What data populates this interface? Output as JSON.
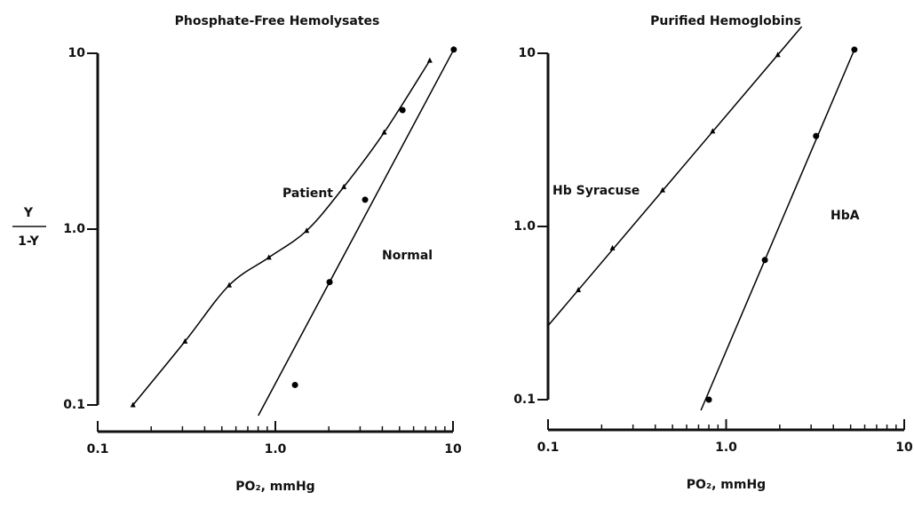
{
  "chart_data": [
    {
      "type": "line",
      "title": "Phosphate-Free Hemolysates",
      "x_label": "PO₂, mmHg",
      "y_label_numerator": "Y",
      "y_label_denominator": "1-Y",
      "log_x": true,
      "log_y": true,
      "xlim": [
        0.1,
        10
      ],
      "ylim": [
        0.1,
        10
      ],
      "xticks": [
        0.1,
        {
          "value": 1,
          "label": "1.0"
        },
        10
      ],
      "xminor": [
        0.2,
        0.3,
        0.4,
        0.5,
        0.6,
        0.7,
        0.8,
        0.9,
        2,
        3,
        4,
        5,
        6,
        7,
        8,
        9
      ],
      "yticks": [
        0.1,
        {
          "value": 1,
          "label": "1.0"
        },
        10
      ],
      "series": [
        {
          "name": "Patient",
          "color": "#000000",
          "marker": "triangle",
          "style": "curve",
          "x": [
            0.158,
            0.31,
            0.55,
            0.92,
            1.5,
            2.43,
            4.1,
            7.4
          ],
          "values": [
            0.1,
            0.23,
            0.48,
            0.69,
            0.98,
            1.74,
            3.55,
            9.1
          ]
        },
        {
          "name": "Normal",
          "color": "#000000",
          "marker": "circle",
          "style": "line",
          "x": [
            1.29,
            2.02,
            3.2,
            5.2,
            10.1
          ],
          "values": [
            0.13,
            0.5,
            1.47,
            4.75,
            10.5
          ]
        }
      ]
    },
    {
      "type": "line",
      "title": "Purified Hemoglobins",
      "x_label": "PO₂, mmHg",
      "log_x": true,
      "log_y": true,
      "xlim": [
        0.1,
        10
      ],
      "ylim": [
        0.1,
        10
      ],
      "xticks": [
        0.1,
        {
          "value": 1,
          "label": "1.0"
        },
        10
      ],
      "xminor": [
        0.2,
        0.3,
        0.4,
        0.5,
        0.6,
        0.7,
        0.8,
        0.9,
        2,
        3,
        4,
        5,
        6,
        7,
        8,
        9
      ],
      "yticks": [
        0.1,
        {
          "value": 1,
          "label": "1.0"
        },
        10
      ],
      "series": [
        {
          "name": "Hb Syracuse",
          "color": "#000000",
          "marker": "triangle",
          "style": "line",
          "x": [
            0.148,
            0.23,
            0.44,
            0.84,
            1.95
          ],
          "values": [
            0.43,
            0.75,
            1.62,
            3.55,
            9.8
          ]
        },
        {
          "name": "HbA",
          "color": "#000000",
          "marker": "circle",
          "style": "line",
          "x": [
            0.8,
            1.65,
            3.2,
            5.25
          ],
          "values": [
            0.1,
            0.64,
            3.33,
            10.5
          ]
        }
      ]
    }
  ]
}
